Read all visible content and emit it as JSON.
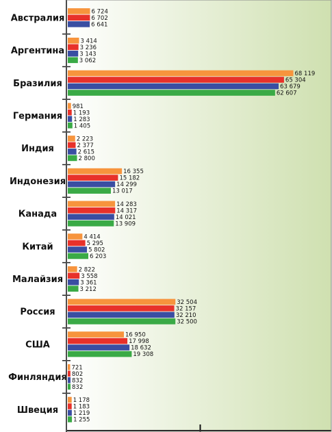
{
  "colors": {
    "background_left": "#ffffff",
    "background_right": "#cfe0b0",
    "axis": "#111111",
    "divider": "#222222",
    "frame": "#888888"
  },
  "chart_data": {
    "type": "bar",
    "orientation": "horizontal",
    "categories": [
      "Австралия",
      "Аргентина",
      "Бразилия",
      "Германия",
      "Индия",
      "Индонезия",
      "Канада",
      "Китай",
      "Малайзия",
      "Россия",
      "США",
      "Финляндия",
      "Швеция"
    ],
    "value_labels": [
      [
        "6 724",
        "6 702",
        "6 641"
      ],
      [
        "3 414",
        "3 236",
        "3 143",
        "3 062"
      ],
      [
        "68 119",
        "65 304",
        "63 679",
        "62 607"
      ],
      [
        "981",
        "1 193",
        "1 283",
        "1 405"
      ],
      [
        "2 223",
        "2 377",
        "2 615",
        "2 800"
      ],
      [
        "16 355",
        "15 182",
        "14 299",
        "13 017"
      ],
      [
        "14 283",
        "14 317",
        "14 021",
        "13 909"
      ],
      [
        "4 414",
        "5 295",
        "5 802",
        "6 203"
      ],
      [
        "2 822",
        "3 558",
        "3 361",
        "3 212"
      ],
      [
        "32 504",
        "32 157",
        "32 210",
        "32 500"
      ],
      [
        "16 950",
        "17 998",
        "18 632",
        "19 308"
      ],
      [
        "721",
        "802",
        "832",
        "832"
      ],
      [
        "1 178",
        "1 183",
        "1 219",
        "1 255"
      ]
    ],
    "series": [
      {
        "color": "#f7943d",
        "values": [
          6724,
          3414,
          68119,
          981,
          2223,
          16355,
          14283,
          4414,
          2822,
          32504,
          16950,
          721,
          1178
        ]
      },
      {
        "color": "#e8312a",
        "values": [
          6702,
          3236,
          65304,
          1193,
          2377,
          15182,
          14317,
          5295,
          3558,
          32157,
          17998,
          802,
          1183
        ]
      },
      {
        "color": "#3a4ea2",
        "values": [
          6641,
          3143,
          63679,
          1283,
          2615,
          14299,
          14021,
          5802,
          3361,
          32210,
          18632,
          832,
          1219
        ]
      },
      {
        "color": "#3aaa46",
        "values": [
          null,
          3062,
          62607,
          1405,
          2800,
          13017,
          13909,
          6203,
          3212,
          32500,
          19308,
          832,
          1255
        ]
      }
    ],
    "xlim": [
      0,
      80000
    ],
    "x_major_ticks": [
      0,
      40000,
      80000
    ],
    "grid": false,
    "legend": "none"
  }
}
